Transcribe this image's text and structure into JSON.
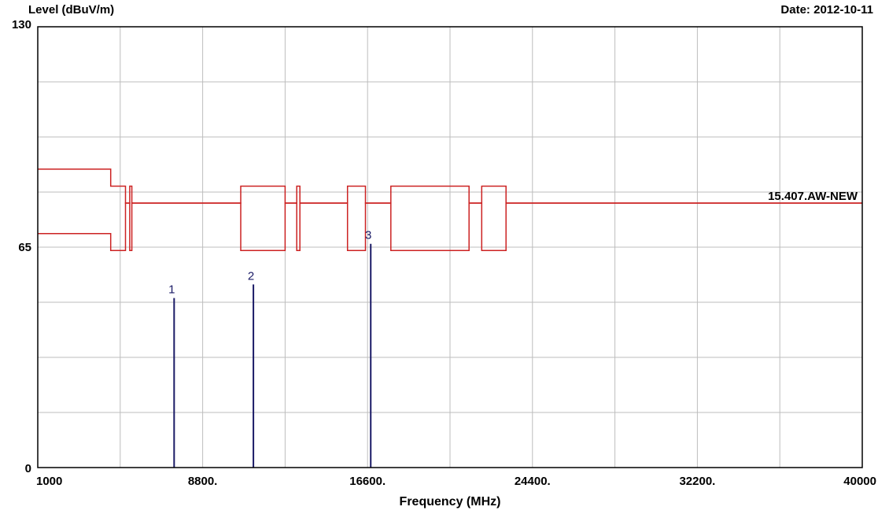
{
  "chart_data": {
    "type": "line",
    "ylabel": "Level (dBuV/m)",
    "xlabel": "Frequency (MHz)",
    "date_text": "Date: 2012-10-11",
    "xlim": [
      1000,
      40000
    ],
    "ylim": [
      0,
      130
    ],
    "x_ticks": [
      {
        "value": 1000,
        "label": "1000"
      },
      {
        "value": 8800,
        "label": "8800."
      },
      {
        "value": 16600,
        "label": "16600."
      },
      {
        "value": 24400,
        "label": "24400."
      },
      {
        "value": 32200,
        "label": "32200."
      },
      {
        "value": 40000,
        "label": "40000"
      }
    ],
    "y_ticks": [
      {
        "value": 0,
        "label": "0"
      },
      {
        "value": 65,
        "label": "65"
      },
      {
        "value": 130,
        "label": "130"
      }
    ],
    "grid": true,
    "grid_step_x": 3900,
    "grid_step_y": 16.25,
    "limit_line": {
      "label": "15.407.AW-NEW",
      "color": "#cc2222",
      "base": 78,
      "upper": [
        [
          1000,
          88
        ],
        [
          4450,
          88
        ],
        [
          4450,
          83
        ],
        [
          5150,
          83
        ],
        [
          5150,
          78
        ],
        [
          5350,
          78
        ],
        [
          5350,
          83
        ],
        [
          5450,
          83
        ],
        [
          5450,
          78
        ],
        [
          10600,
          78
        ],
        [
          10600,
          83
        ],
        [
          12700,
          83
        ],
        [
          12700,
          78
        ],
        [
          13250,
          78
        ],
        [
          13250,
          83
        ],
        [
          13400,
          83
        ],
        [
          13400,
          78
        ],
        [
          15650,
          78
        ],
        [
          15650,
          83
        ],
        [
          16500,
          83
        ],
        [
          16500,
          78
        ],
        [
          17700,
          78
        ],
        [
          17700,
          83
        ],
        [
          21400,
          83
        ],
        [
          21400,
          78
        ],
        [
          22000,
          78
        ],
        [
          22000,
          83
        ],
        [
          23150,
          83
        ],
        [
          23150,
          78
        ],
        [
          40000,
          78
        ]
      ],
      "lower": [
        [
          1000,
          69
        ],
        [
          4450,
          69
        ],
        [
          4450,
          64
        ],
        [
          5150,
          64
        ],
        [
          5150,
          78
        ],
        [
          5350,
          78
        ],
        [
          5350,
          64
        ],
        [
          5450,
          64
        ],
        [
          5450,
          78
        ],
        [
          10600,
          78
        ],
        [
          10600,
          64
        ],
        [
          12700,
          64
        ],
        [
          12700,
          78
        ],
        [
          13250,
          78
        ],
        [
          13250,
          64
        ],
        [
          13400,
          64
        ],
        [
          13400,
          78
        ],
        [
          15650,
          78
        ],
        [
          15650,
          64
        ],
        [
          16500,
          64
        ],
        [
          16500,
          78
        ],
        [
          17700,
          78
        ],
        [
          17700,
          64
        ],
        [
          21400,
          64
        ],
        [
          21400,
          78
        ],
        [
          22000,
          78
        ],
        [
          22000,
          64
        ],
        [
          23150,
          64
        ],
        [
          23150,
          78
        ],
        [
          40000,
          78
        ]
      ]
    },
    "markers": [
      {
        "label": "1",
        "x": 7450,
        "y": 50,
        "color": "#1a1a66"
      },
      {
        "label": "2",
        "x": 11200,
        "y": 54,
        "color": "#1a1a66"
      },
      {
        "label": "3",
        "x": 16750,
        "y": 66,
        "color": "#1a1a66"
      }
    ],
    "colors": {
      "grid": "#bdbdbd",
      "frame": "#000000",
      "limit": "#cc2222",
      "marker": "#1a1a66"
    }
  }
}
